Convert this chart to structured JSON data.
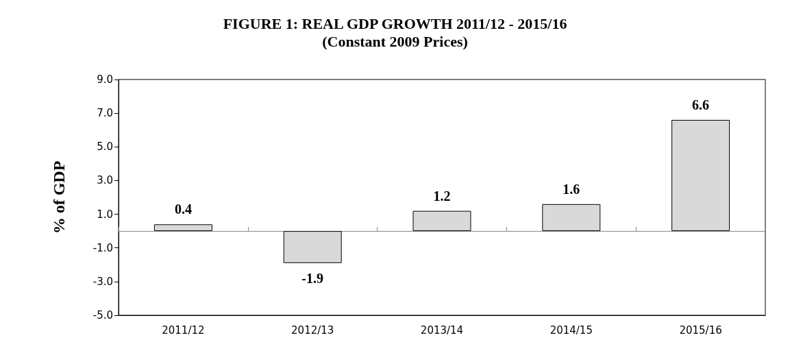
{
  "chart_data": {
    "type": "bar",
    "title": "FIGURE 1: REAL GDP GROWTH 2011/12 - 2015/16",
    "subtitle": "(Constant 2009 Prices)",
    "ylabel": "% of GDP",
    "categories": [
      "2011/12",
      "2012/13",
      "2013/14",
      "2014/15",
      "2015/16"
    ],
    "values": [
      0.4,
      -1.9,
      1.2,
      1.6,
      6.6
    ],
    "color": "#d9d9d9",
    "data_labels": true,
    "ylim": [
      -5,
      9
    ],
    "yticks": [
      {
        "value": -5,
        "label": "-5.0"
      },
      {
        "value": -3,
        "label": "-3.0"
      },
      {
        "value": -1,
        "label": "-1.0"
      },
      {
        "value": 1,
        "label": "1.0"
      },
      {
        "value": 3,
        "label": "3.0"
      },
      {
        "value": 5,
        "label": "5.0"
      },
      {
        "value": 7,
        "label": "7.0"
      },
      {
        "value": 9,
        "label": "9.0"
      }
    ],
    "grid": false
  }
}
